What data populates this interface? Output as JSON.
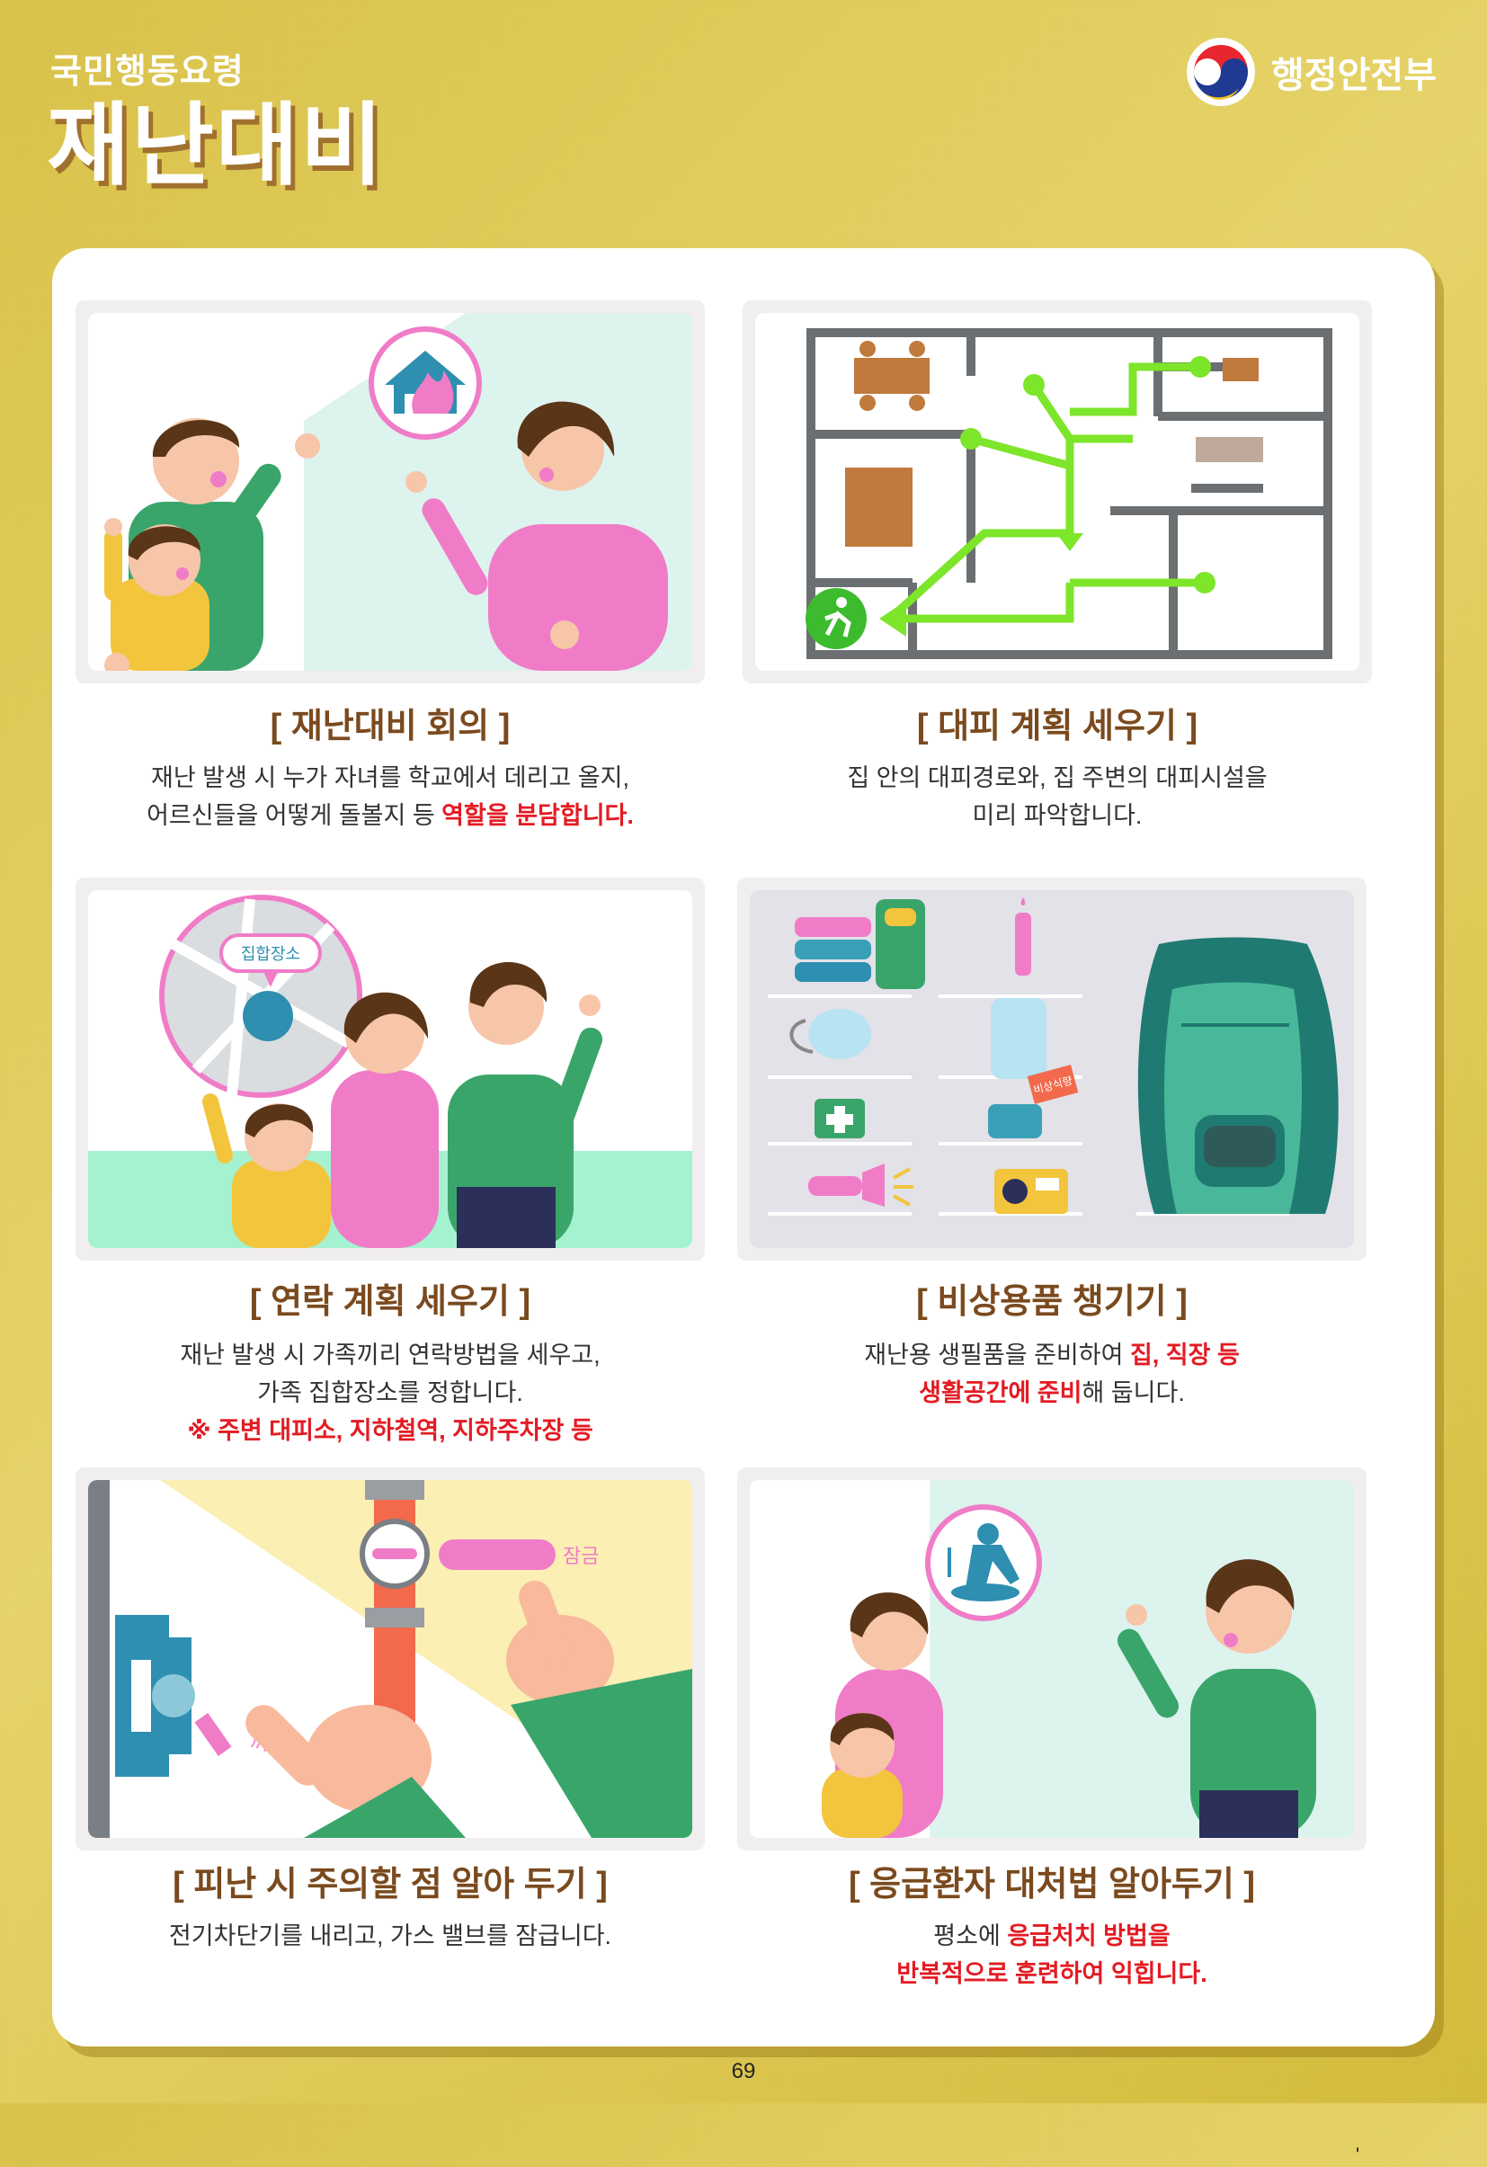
{
  "header": {
    "subtitle": "국민행동요령",
    "title": "재난대비",
    "ministry": "행정안전부"
  },
  "sections": [
    {
      "heading": "[ 재난대비 회의 ]",
      "line1": "재난 발생 시 누가 자녀를 학교에서 데리고 올지,",
      "line2_plain": "어르신들을 어떻게 돌볼지 등 ",
      "line2_red": "역할을 분담합니다."
    },
    {
      "heading": "[ 대피 계획 세우기 ]",
      "line1": "집 안의 대피경로와, 집 주변의 대피시설을",
      "line2": "미리 파악합니다."
    },
    {
      "heading": "[ 연락 계획 세우기 ]",
      "line1": "재난 발생 시 가족끼리  연락방법을 세우고,",
      "line2": "가족 집합장소를 정합니다.",
      "line3_red": "※ 주변 대피소, 지하철역, 지하주차장 등",
      "map_label": "집합장소"
    },
    {
      "heading": "[ 비상용품 챙기기 ]",
      "line1_plain": "재난용 생필품을 준비하여 ",
      "line1_red": "집, 직장 등",
      "line2_red": "생활공간에 준비",
      "line2_plain": "해 둡니다.",
      "food_label": "비상식량"
    },
    {
      "heading": "[ 피난 시 주의할 점 알아 두기 ]",
      "line1": "전기차단기를 내리고, 가스 밸브를 잠급니다.",
      "valve_label": "잠금",
      "breaker_label": "꺼짐"
    },
    {
      "heading": "[ 응급환자 대처법 알아두기 ]",
      "line1_plain": "평소에 ",
      "line1_red": "응급처치 방법을",
      "line2_red": "반복적으로 훈련하여 익힙니다."
    }
  ],
  "footer": {
    "page_number": "69",
    "stray_mark": "'"
  },
  "colors": {
    "background": "#d9c24a",
    "heading": "#7a4a1e",
    "emphasis": "#e31b23",
    "route": "#7de52a",
    "pink": "#f07cc8",
    "green": "#3aa56a"
  }
}
